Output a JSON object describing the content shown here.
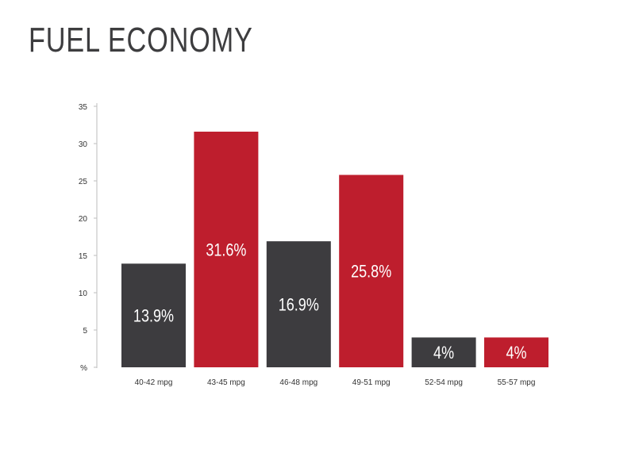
{
  "title": "FUEL ECONOMY",
  "colors": {
    "dark": "#3d3c3f",
    "red": "#be1e2d",
    "axis": "#bdbdbd"
  },
  "chart_data": {
    "type": "bar",
    "title": "FUEL ECONOMY",
    "categories": [
      "40-42 mpg",
      "43-45 mpg",
      "46-48 mpg",
      "49-51 mpg",
      "52-54 mpg",
      "55-57 mpg"
    ],
    "values": [
      13.9,
      31.6,
      16.9,
      25.8,
      4,
      4
    ],
    "value_labels": [
      "13.9%",
      "31.6%",
      "16.9%",
      "25.8%",
      "4%",
      "4%"
    ],
    "bar_colors": [
      "#3d3c3f",
      "#be1e2d",
      "#3d3c3f",
      "#be1e2d",
      "#3d3c3f",
      "#be1e2d"
    ],
    "y_ticks": [
      "%",
      "5",
      "10",
      "15",
      "20",
      "25",
      "30",
      "35"
    ],
    "y_tick_values": [
      0,
      5,
      10,
      15,
      20,
      25,
      30,
      35
    ],
    "ylim": [
      0,
      35
    ],
    "xlabel": "",
    "ylabel": "",
    "grid": false,
    "legend": "none"
  }
}
